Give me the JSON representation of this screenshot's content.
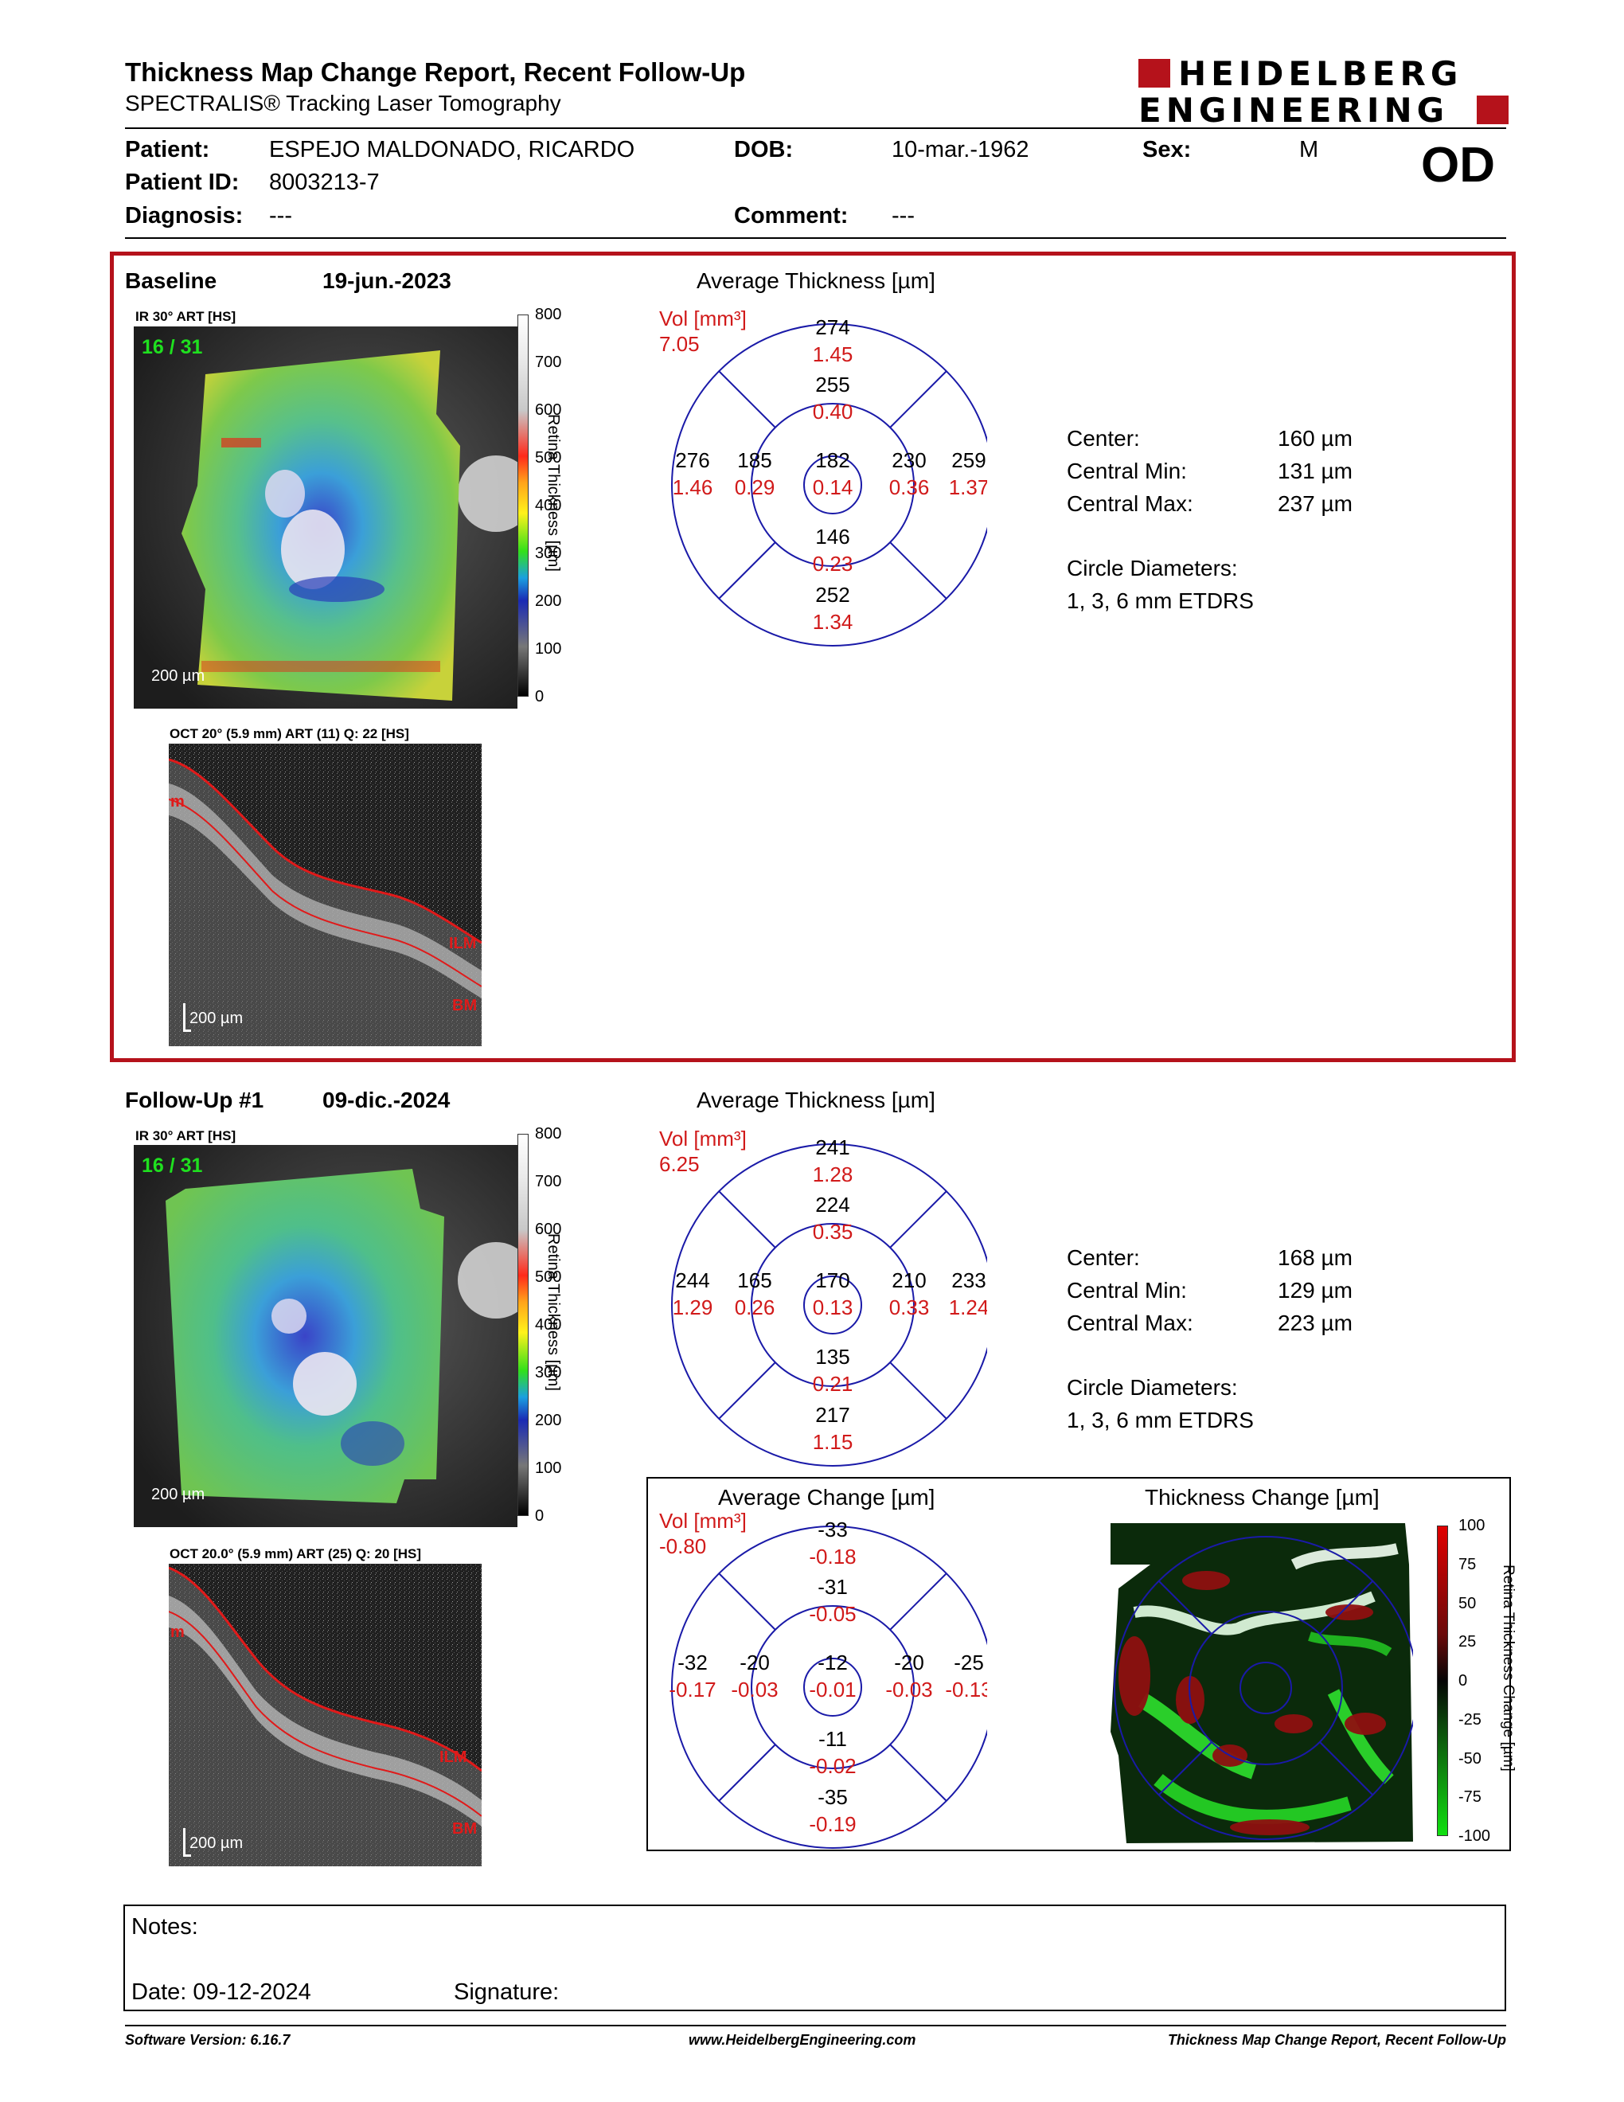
{
  "header": {
    "title": "Thickness Map Change Report, Recent Follow-Up",
    "subtitle": "SPECTRALIS® Tracking Laser Tomography",
    "logo_line1": "HEIDELBERG",
    "logo_line2": "ENGINEERING"
  },
  "patient": {
    "patient_label": "Patient:",
    "patient_value": "ESPEJO MALDONADO, RICARDO",
    "dob_label": "DOB:",
    "dob_value": "10-mar.-1962",
    "sex_label": "Sex:",
    "sex_value": "M",
    "id_label": "Patient ID:",
    "id_value": "8003213-7",
    "eye": "OD",
    "diagnosis_label": "Diagnosis:",
    "diagnosis_value": "---",
    "comment_label": "Comment:",
    "comment_value": "---"
  },
  "baseline": {
    "label": "Baseline",
    "date": "19-jun.-2023",
    "ir_label": "IR 30° ART [HS]",
    "frame": "16 / 31",
    "scale": "200 µm",
    "oct_label": "OCT 20° (5.9 mm) ART (11) Q: 22 [HS]",
    "oct_scale": "200 µm",
    "avg_title": "Average Thickness [µm]",
    "vol_label": "Vol [mm³]",
    "vol_value": "7.05",
    "grid": {
      "outer_top": "274",
      "outer_top_v": "1.45",
      "inner_top": "255",
      "inner_top_v": "0.40",
      "outer_left": "276",
      "outer_left_v": "1.46",
      "inner_left": "185",
      "inner_left_v": "0.29",
      "center": "182",
      "center_v": "0.14",
      "inner_right": "230",
      "inner_right_v": "0.36",
      "outer_right": "259",
      "outer_right_v": "1.37",
      "inner_bottom": "146",
      "inner_bottom_v": "0.23",
      "outer_bottom": "252",
      "outer_bottom_v": "1.34"
    },
    "stats": {
      "center_label": "Center:",
      "center_value": "160 µm",
      "min_label": "Central Min:",
      "min_value": "131 µm",
      "max_label": "Central Max:",
      "max_value": "237 µm",
      "circle_label": "Circle Diameters:",
      "circle_value": "1, 3, 6 mm ETDRS"
    }
  },
  "followup": {
    "label": "Follow-Up #1",
    "date": "09-dic.-2024",
    "ir_label": "IR 30° ART [HS]",
    "frame": "16 / 31",
    "scale": "200 µm",
    "oct_label": "OCT 20.0° (5.9 mm) ART (25) Q: 20 [HS]",
    "oct_scale": "200 µm",
    "avg_title": "Average Thickness [µm]",
    "vol_label": "Vol [mm³]",
    "vol_value": "6.25",
    "grid": {
      "outer_top": "241",
      "outer_top_v": "1.28",
      "inner_top": "224",
      "inner_top_v": "0.35",
      "outer_left": "244",
      "outer_left_v": "1.29",
      "inner_left": "165",
      "inner_left_v": "0.26",
      "center": "170",
      "center_v": "0.13",
      "inner_right": "210",
      "inner_right_v": "0.33",
      "outer_right": "233",
      "outer_right_v": "1.24",
      "inner_bottom": "135",
      "inner_bottom_v": "0.21",
      "outer_bottom": "217",
      "outer_bottom_v": "1.15"
    },
    "stats": {
      "center_label": "Center:",
      "center_value": "168 µm",
      "min_label": "Central Min:",
      "min_value": "129 µm",
      "max_label": "Central Max:",
      "max_value": "223 µm",
      "circle_label": "Circle Diameters:",
      "circle_value": "1, 3, 6 mm ETDRS"
    }
  },
  "change": {
    "avg_title": "Average Change [µm]",
    "vol_label": "Vol [mm³]",
    "vol_value": "-0.80",
    "grid": {
      "outer_top": "-33",
      "outer_top_v": "-0.18",
      "inner_top": "-31",
      "inner_top_v": "-0.05",
      "outer_left": "-32",
      "outer_left_v": "-0.17",
      "inner_left": "-20",
      "inner_left_v": "-0.03",
      "center": "-12",
      "center_v": "-0.01",
      "inner_right": "-20",
      "inner_right_v": "-0.03",
      "outer_right": "-25",
      "outer_right_v": "-0.13",
      "inner_bottom": "-11",
      "inner_bottom_v": "-0.02",
      "outer_bottom": "-35",
      "outer_bottom_v": "-0.19"
    },
    "map_title": "Thickness Change [µm]"
  },
  "colorbar_thickness": {
    "ticks": [
      "800",
      "700",
      "600",
      "500",
      "400",
      "300",
      "200",
      "100",
      "0"
    ],
    "title": "Retina Thickness [µm]"
  },
  "colorbar_change": {
    "ticks": [
      "100",
      "75",
      "50",
      "25",
      "0",
      "-25",
      "-50",
      "-75",
      "-100"
    ],
    "title": "Retina Thickness Change [µm]"
  },
  "bscan_labels": {
    "ilm": "ILM",
    "bm": "BM",
    "m": "m"
  },
  "notes": {
    "notes_label": "Notes:",
    "date_label": "Date: 09-12-2024",
    "signature_label": "Signature:"
  },
  "footer": {
    "software": "Software Version: 6.16.7",
    "website": "www.HeidelbergEngineering.com",
    "report_name": "Thickness Map Change Report, Recent Follow-Up"
  },
  "colors": {
    "accent_red": "#b5121b",
    "grid_blue": "#1a1aa8",
    "value_red": "#d11a1a"
  }
}
